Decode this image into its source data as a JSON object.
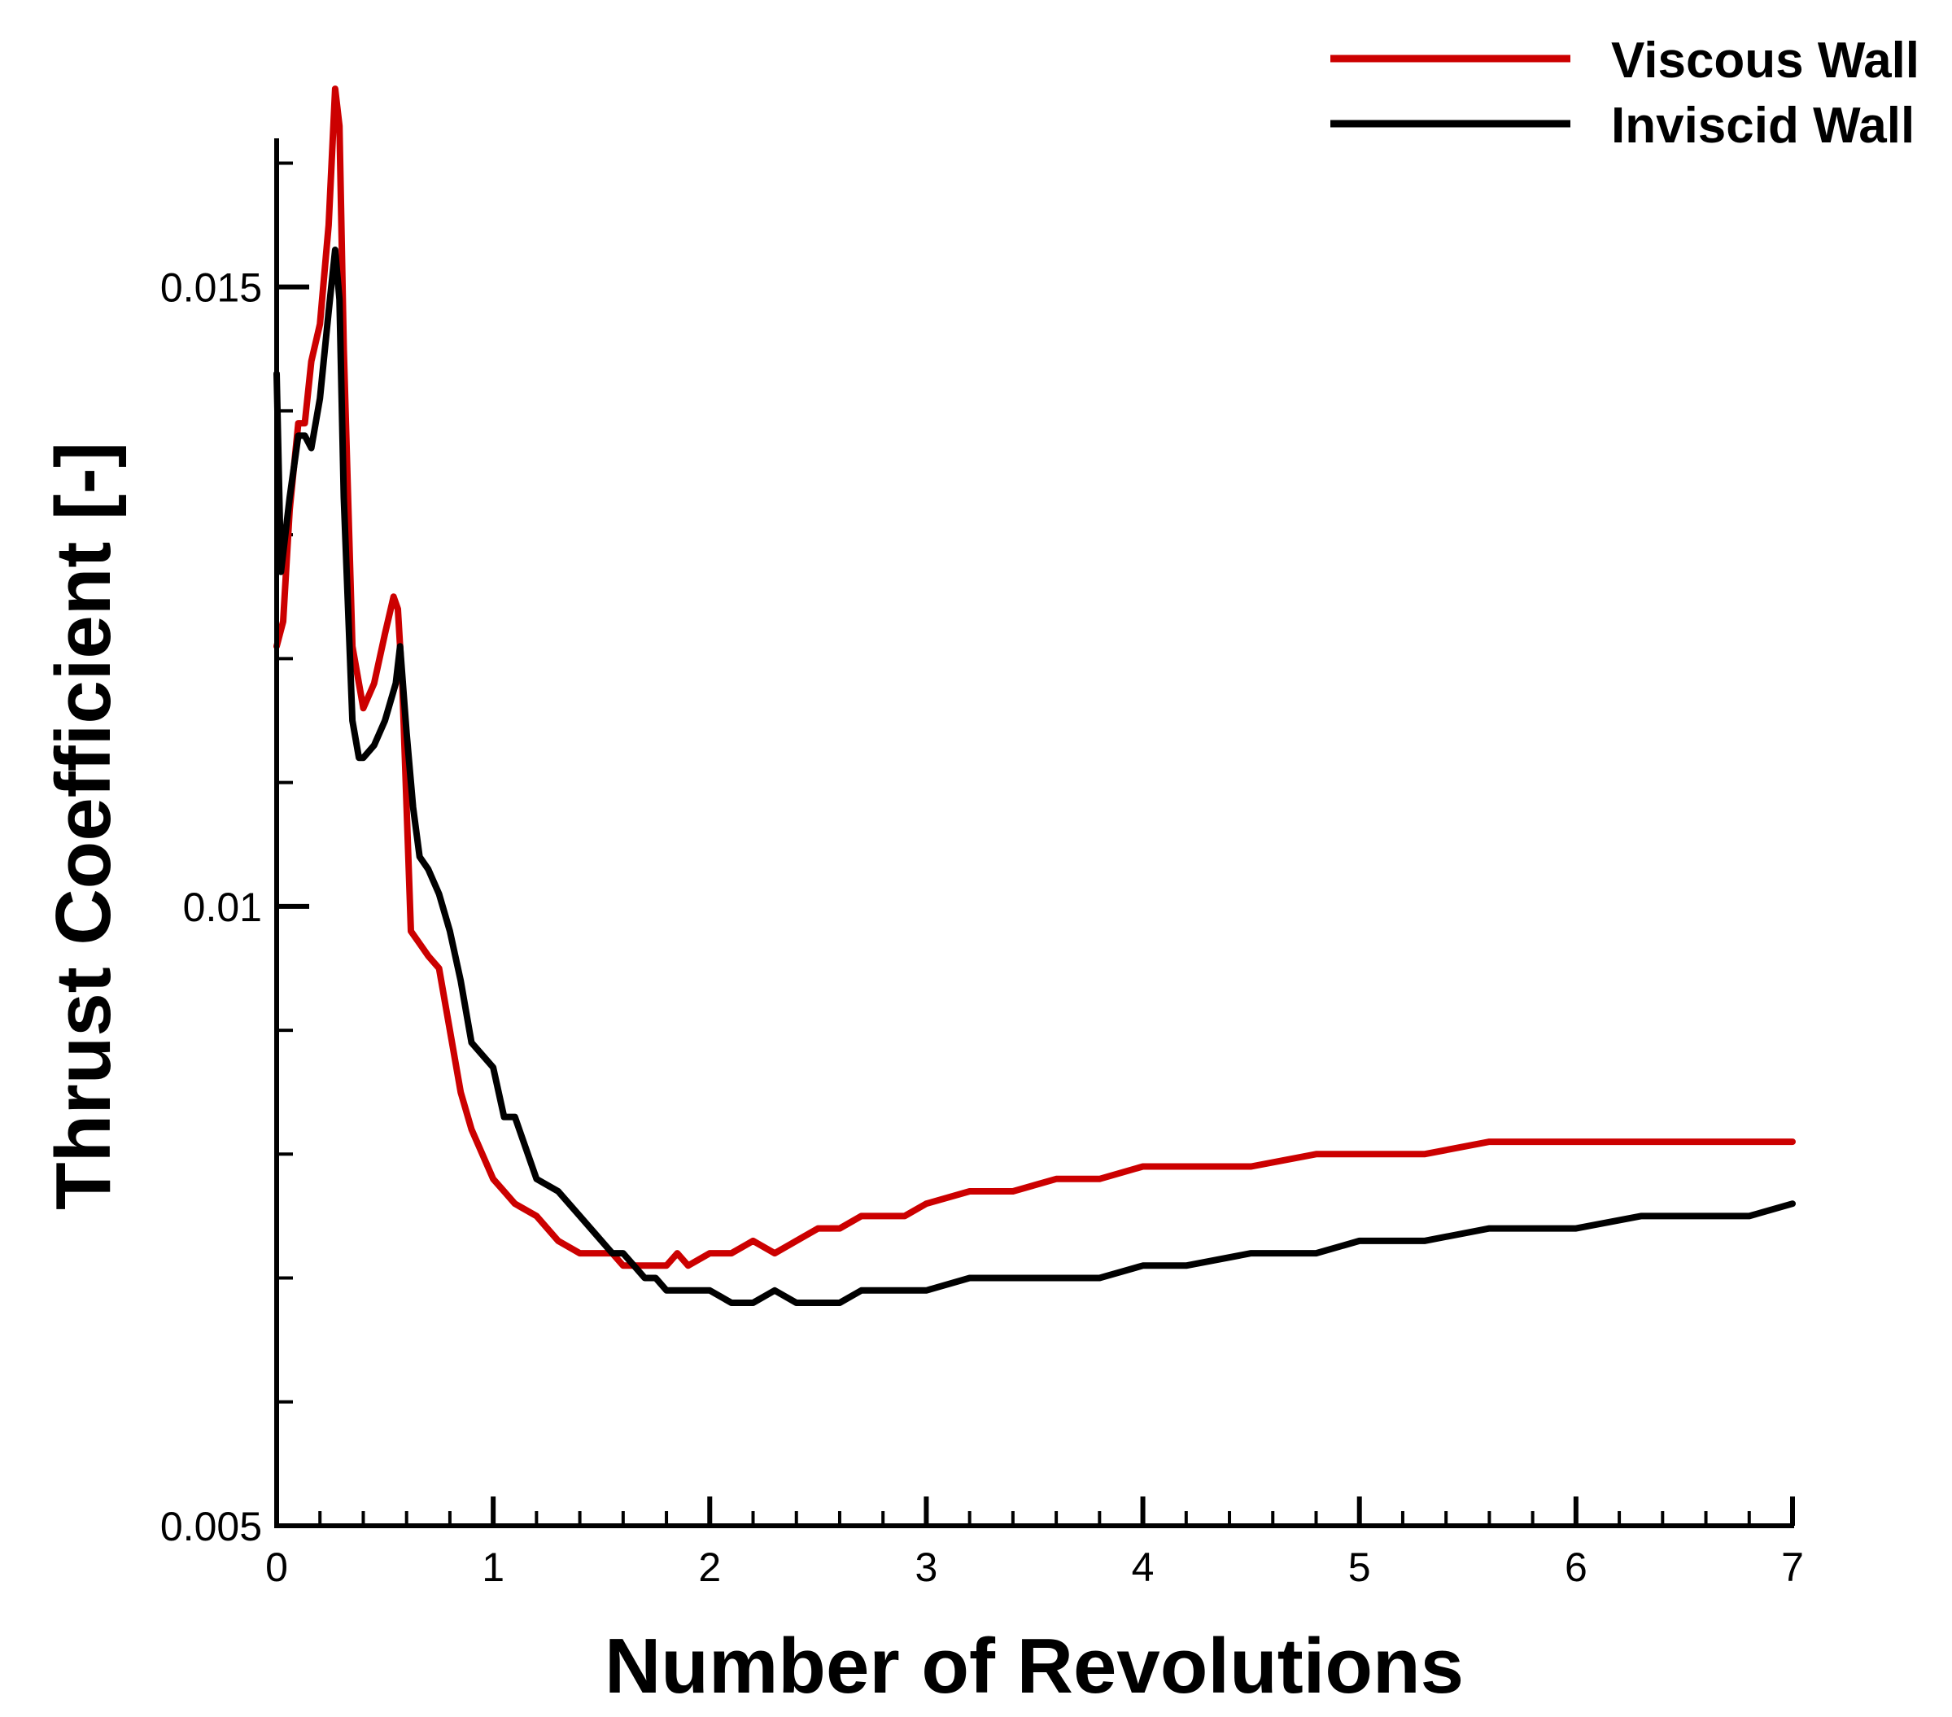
{
  "chart_data": {
    "type": "line",
    "title": "",
    "xlabel": "Number of Revolutions",
    "ylabel": "Thrust Coefficient [-]",
    "xlim": [
      0,
      7
    ],
    "ylim": [
      0.005,
      0.0162
    ],
    "x_ticks": [
      0,
      1,
      2,
      3,
      4,
      5,
      6,
      7
    ],
    "x_tick_labels": [
      "0",
      "1",
      "2",
      "3",
      "4",
      "5",
      "6",
      "7"
    ],
    "y_ticks": [
      0.005,
      0.01,
      0.015
    ],
    "y_tick_labels": [
      "0.005",
      "0.01",
      "0.015"
    ],
    "grid": false,
    "legend_position": "top-right",
    "series": [
      {
        "name": "Viscous Wall",
        "color": "#cc0000",
        "x": [
          0,
          0.03,
          0.06,
          0.1,
          0.13,
          0.16,
          0.2,
          0.24,
          0.27,
          0.29,
          0.31,
          0.35,
          0.4,
          0.45,
          0.5,
          0.54,
          0.56,
          0.58,
          0.6,
          0.62,
          0.66,
          0.7,
          0.75,
          0.8,
          0.85,
          0.9,
          1.0,
          1.05,
          1.1,
          1.2,
          1.3,
          1.4,
          1.5,
          1.55,
          1.6,
          1.65,
          1.7,
          1.8,
          1.85,
          1.9,
          2.0,
          2.1,
          2.2,
          2.3,
          2.4,
          2.5,
          2.6,
          2.7,
          2.8,
          2.9,
          3.0,
          3.2,
          3.4,
          3.6,
          3.8,
          4.0,
          4.2,
          4.5,
          4.8,
          5.0,
          5.3,
          5.6,
          6.0,
          6.3,
          6.6,
          6.8,
          7.0
        ],
        "y": [
          0.0121,
          0.0123,
          0.0132,
          0.0139,
          0.0139,
          0.0144,
          0.0147,
          0.0155,
          0.0166,
          0.0163,
          0.0145,
          0.0121,
          0.0116,
          0.0118,
          0.0122,
          0.0125,
          0.0124,
          0.0118,
          0.0108,
          0.0098,
          0.0097,
          0.0096,
          0.0095,
          0.009,
          0.0085,
          0.0082,
          0.0078,
          0.0077,
          0.0076,
          0.0075,
          0.0073,
          0.0072,
          0.0072,
          0.0072,
          0.0071,
          0.0071,
          0.0071,
          0.0071,
          0.0072,
          0.0071,
          0.0072,
          0.0072,
          0.0073,
          0.0072,
          0.0073,
          0.0074,
          0.0074,
          0.0075,
          0.0075,
          0.0075,
          0.0076,
          0.0077,
          0.0077,
          0.0078,
          0.0078,
          0.0079,
          0.0079,
          0.0079,
          0.008,
          0.008,
          0.008,
          0.0081,
          0.0081,
          0.0081,
          0.0081,
          0.0081,
          0.0081
        ]
      },
      {
        "name": "Inviscid Wall",
        "color": "#000000",
        "x": [
          0,
          0.02,
          0.06,
          0.1,
          0.13,
          0.16,
          0.2,
          0.24,
          0.27,
          0.29,
          0.31,
          0.35,
          0.38,
          0.4,
          0.45,
          0.5,
          0.55,
          0.57,
          0.6,
          0.63,
          0.66,
          0.7,
          0.75,
          0.8,
          0.85,
          0.9,
          1.0,
          1.05,
          1.1,
          1.2,
          1.3,
          1.4,
          1.5,
          1.55,
          1.6,
          1.7,
          1.75,
          1.8,
          1.9,
          2.0,
          2.1,
          2.2,
          2.3,
          2.4,
          2.5,
          2.6,
          2.7,
          2.8,
          2.9,
          3.0,
          3.2,
          3.4,
          3.6,
          3.8,
          4.0,
          4.2,
          4.5,
          4.8,
          5.0,
          5.3,
          5.6,
          6.0,
          6.3,
          6.6,
          6.8,
          7.0
        ],
        "y": [
          0.0143,
          0.0127,
          0.0133,
          0.0138,
          0.0138,
          0.0137,
          0.0141,
          0.0148,
          0.0153,
          0.0149,
          0.0133,
          0.0115,
          0.0112,
          0.0112,
          0.0113,
          0.0115,
          0.0118,
          0.0121,
          0.0114,
          0.0108,
          0.0104,
          0.0103,
          0.0101,
          0.0098,
          0.0094,
          0.0089,
          0.0087,
          0.0083,
          0.0083,
          0.0078,
          0.0077,
          0.0075,
          0.0073,
          0.0072,
          0.0072,
          0.007,
          0.007,
          0.0069,
          0.0069,
          0.0069,
          0.0068,
          0.0068,
          0.0069,
          0.0068,
          0.0068,
          0.0068,
          0.0069,
          0.0069,
          0.0069,
          0.0069,
          0.007,
          0.007,
          0.007,
          0.007,
          0.0071,
          0.0071,
          0.0072,
          0.0072,
          0.0073,
          0.0073,
          0.0074,
          0.0074,
          0.0075,
          0.0075,
          0.0075,
          0.0076
        ]
      }
    ]
  }
}
